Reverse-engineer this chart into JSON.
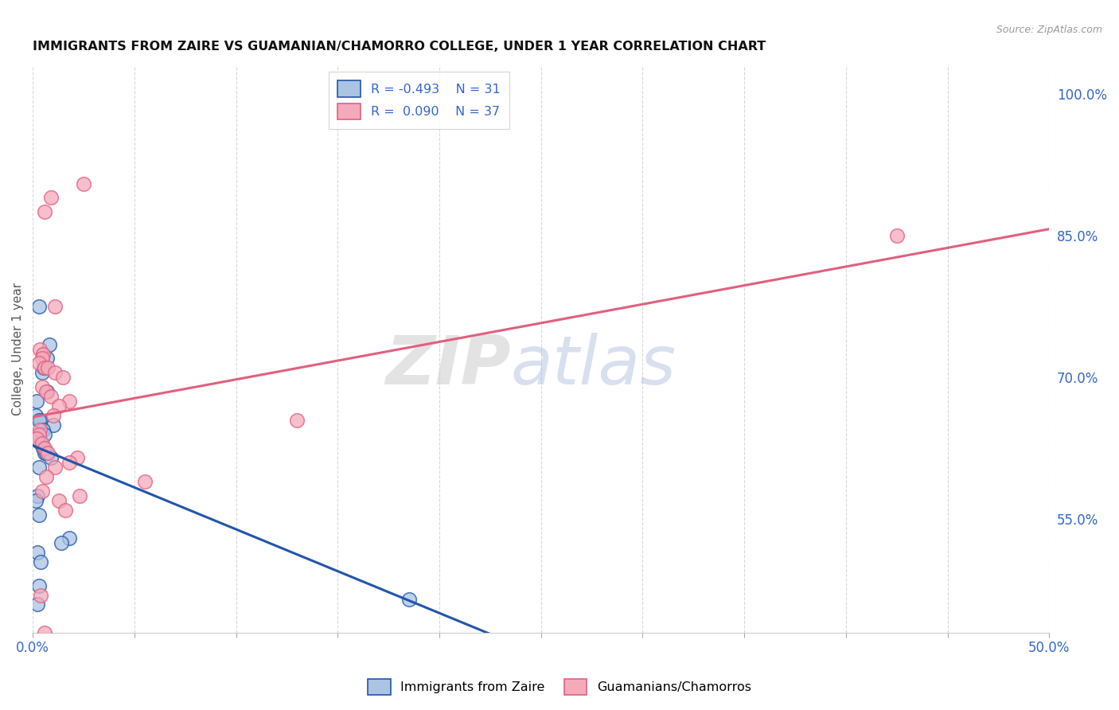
{
  "title": "IMMIGRANTS FROM ZAIRE VS GUAMANIAN/CHAMORRO COLLEGE, UNDER 1 YEAR CORRELATION CHART",
  "source": "Source: ZipAtlas.com",
  "ylabel": "College, Under 1 year",
  "right_yticks": [
    55.0,
    70.0,
    85.0,
    100.0
  ],
  "legend_r1": "R = -0.493",
  "legend_n1": "N = 31",
  "legend_r2": "R =  0.090",
  "legend_n2": "N = 37",
  "blue_color": "#aac4e2",
  "pink_color": "#f5aabb",
  "line_blue": "#2255aa",
  "line_pink": "#e06080",
  "blue_scatter_x": [
    0.3,
    0.5,
    0.7,
    0.2,
    0.15,
    0.4,
    0.3,
    1.0,
    0.5,
    0.6,
    0.25,
    0.4,
    0.5,
    0.6,
    0.65,
    0.9,
    0.3,
    1.8,
    1.4,
    0.25,
    0.15,
    0.3,
    0.25,
    0.4,
    0.45,
    0.55,
    0.7,
    0.8,
    0.3,
    18.5,
    0.25
  ],
  "blue_scatter_y": [
    77.5,
    72.5,
    72.0,
    67.5,
    66.0,
    65.5,
    65.5,
    65.0,
    64.5,
    64.0,
    63.5,
    63.0,
    62.5,
    62.0,
    62.0,
    61.5,
    60.5,
    53.0,
    52.5,
    57.5,
    57.0,
    55.5,
    51.5,
    50.5,
    70.5,
    71.0,
    68.5,
    73.5,
    48.0,
    46.5,
    46.0
  ],
  "pink_scatter_x": [
    0.9,
    0.6,
    2.5,
    1.1,
    0.35,
    0.5,
    0.45,
    0.3,
    0.6,
    0.75,
    1.1,
    1.5,
    0.45,
    0.65,
    0.9,
    1.8,
    1.3,
    1.0,
    0.35,
    0.3,
    0.2,
    0.45,
    0.6,
    0.75,
    2.2,
    1.8,
    1.1,
    0.65,
    5.5,
    0.45,
    2.3,
    1.3,
    1.6,
    0.4,
    0.6,
    42.5,
    13.0
  ],
  "pink_scatter_y": [
    89.0,
    87.5,
    90.5,
    77.5,
    73.0,
    72.5,
    72.0,
    71.5,
    71.0,
    71.0,
    70.5,
    70.0,
    69.0,
    68.5,
    68.0,
    67.5,
    67.0,
    66.0,
    64.5,
    64.0,
    63.5,
    63.0,
    62.5,
    62.0,
    61.5,
    61.0,
    60.5,
    59.5,
    59.0,
    58.0,
    57.5,
    57.0,
    56.0,
    47.0,
    43.0,
    85.0,
    65.5
  ],
  "xmin": 0.0,
  "xmax": 50.0,
  "ymin": 43.0,
  "ymax": 103.0,
  "watermark_zip": "ZIP",
  "watermark_atlas": "atlas",
  "background_color": "#ffffff",
  "grid_color": "#d8d8d8"
}
